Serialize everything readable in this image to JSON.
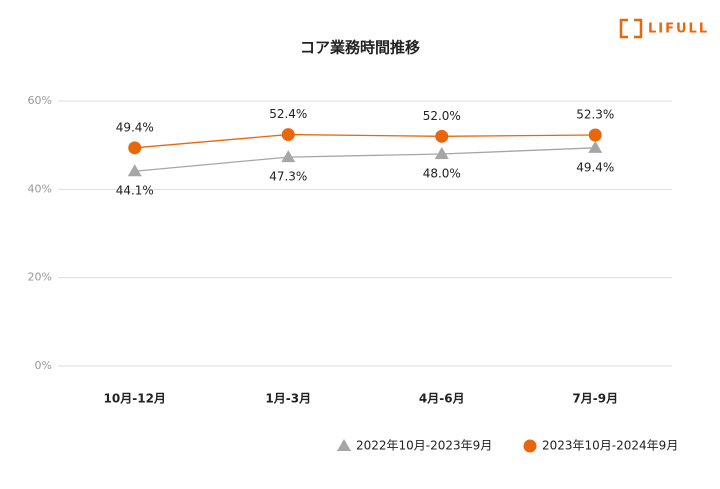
{
  "logo": "LIFULL",
  "chart_data": {
    "type": "line",
    "title": "コア業務時間推移",
    "categories": [
      "10月-12月",
      "1月-3月",
      "4月-6月",
      "7月-9月"
    ],
    "series": [
      {
        "name": "2022年10月-2023年9月",
        "color": "#a6a6a6",
        "marker": "triangle",
        "values": [
          44.1,
          47.3,
          48.0,
          49.4
        ],
        "value_labels": [
          "44.1%",
          "47.3%",
          "48.0%",
          "49.4%"
        ],
        "label_position": "below"
      },
      {
        "name": "2023年10月-2024年9月",
        "color": "#e8670c",
        "marker": "circle",
        "values": [
          49.4,
          52.4,
          52.0,
          52.3
        ],
        "value_labels": [
          "49.4%",
          "52.4%",
          "52.0%",
          "52.3%"
        ],
        "label_position": "above"
      }
    ],
    "ylim": [
      0,
      60
    ],
    "yticks": [
      {
        "value": 0,
        "label": "0%"
      },
      {
        "value": 20,
        "label": "20%"
      },
      {
        "value": 40,
        "label": "40%"
      },
      {
        "value": 60,
        "label": "60%"
      }
    ],
    "grid": true,
    "legend": "bottom"
  }
}
